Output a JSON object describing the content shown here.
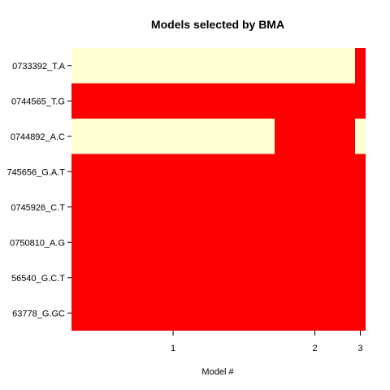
{
  "chart_data": {
    "type": "heatmap",
    "title": "Models selected by BMA",
    "xlabel": "Model #",
    "ylabel": "",
    "x_ticks": [
      {
        "label": "1",
        "value": 1
      },
      {
        "label": "2",
        "value": 2
      },
      {
        "label": "3",
        "value": 3
      }
    ],
    "rows": [
      "0733392_T.A",
      "0744565_T.G",
      "0744892_A.C",
      "745656_G.A.T",
      "0745926_C.T",
      "0750810_A.G",
      "56540_G.C.T",
      "63778_G.GC"
    ],
    "models": [
      {
        "model": 1,
        "cumulative_prob_start": 0.0,
        "cumulative_prob_end": 0.691,
        "included": [
          false,
          true,
          false,
          true,
          true,
          true,
          true,
          true
        ]
      },
      {
        "model": 2,
        "cumulative_prob_start": 0.691,
        "cumulative_prob_end": 0.964,
        "included": [
          false,
          true,
          true,
          true,
          true,
          true,
          true,
          true
        ]
      },
      {
        "model": 3,
        "cumulative_prob_start": 0.964,
        "cumulative_prob_end": 1.0,
        "included": [
          true,
          true,
          false,
          true,
          true,
          true,
          true,
          true
        ]
      }
    ],
    "colors": {
      "included": "#FF0000",
      "excluded": "#FFFFD4"
    }
  }
}
